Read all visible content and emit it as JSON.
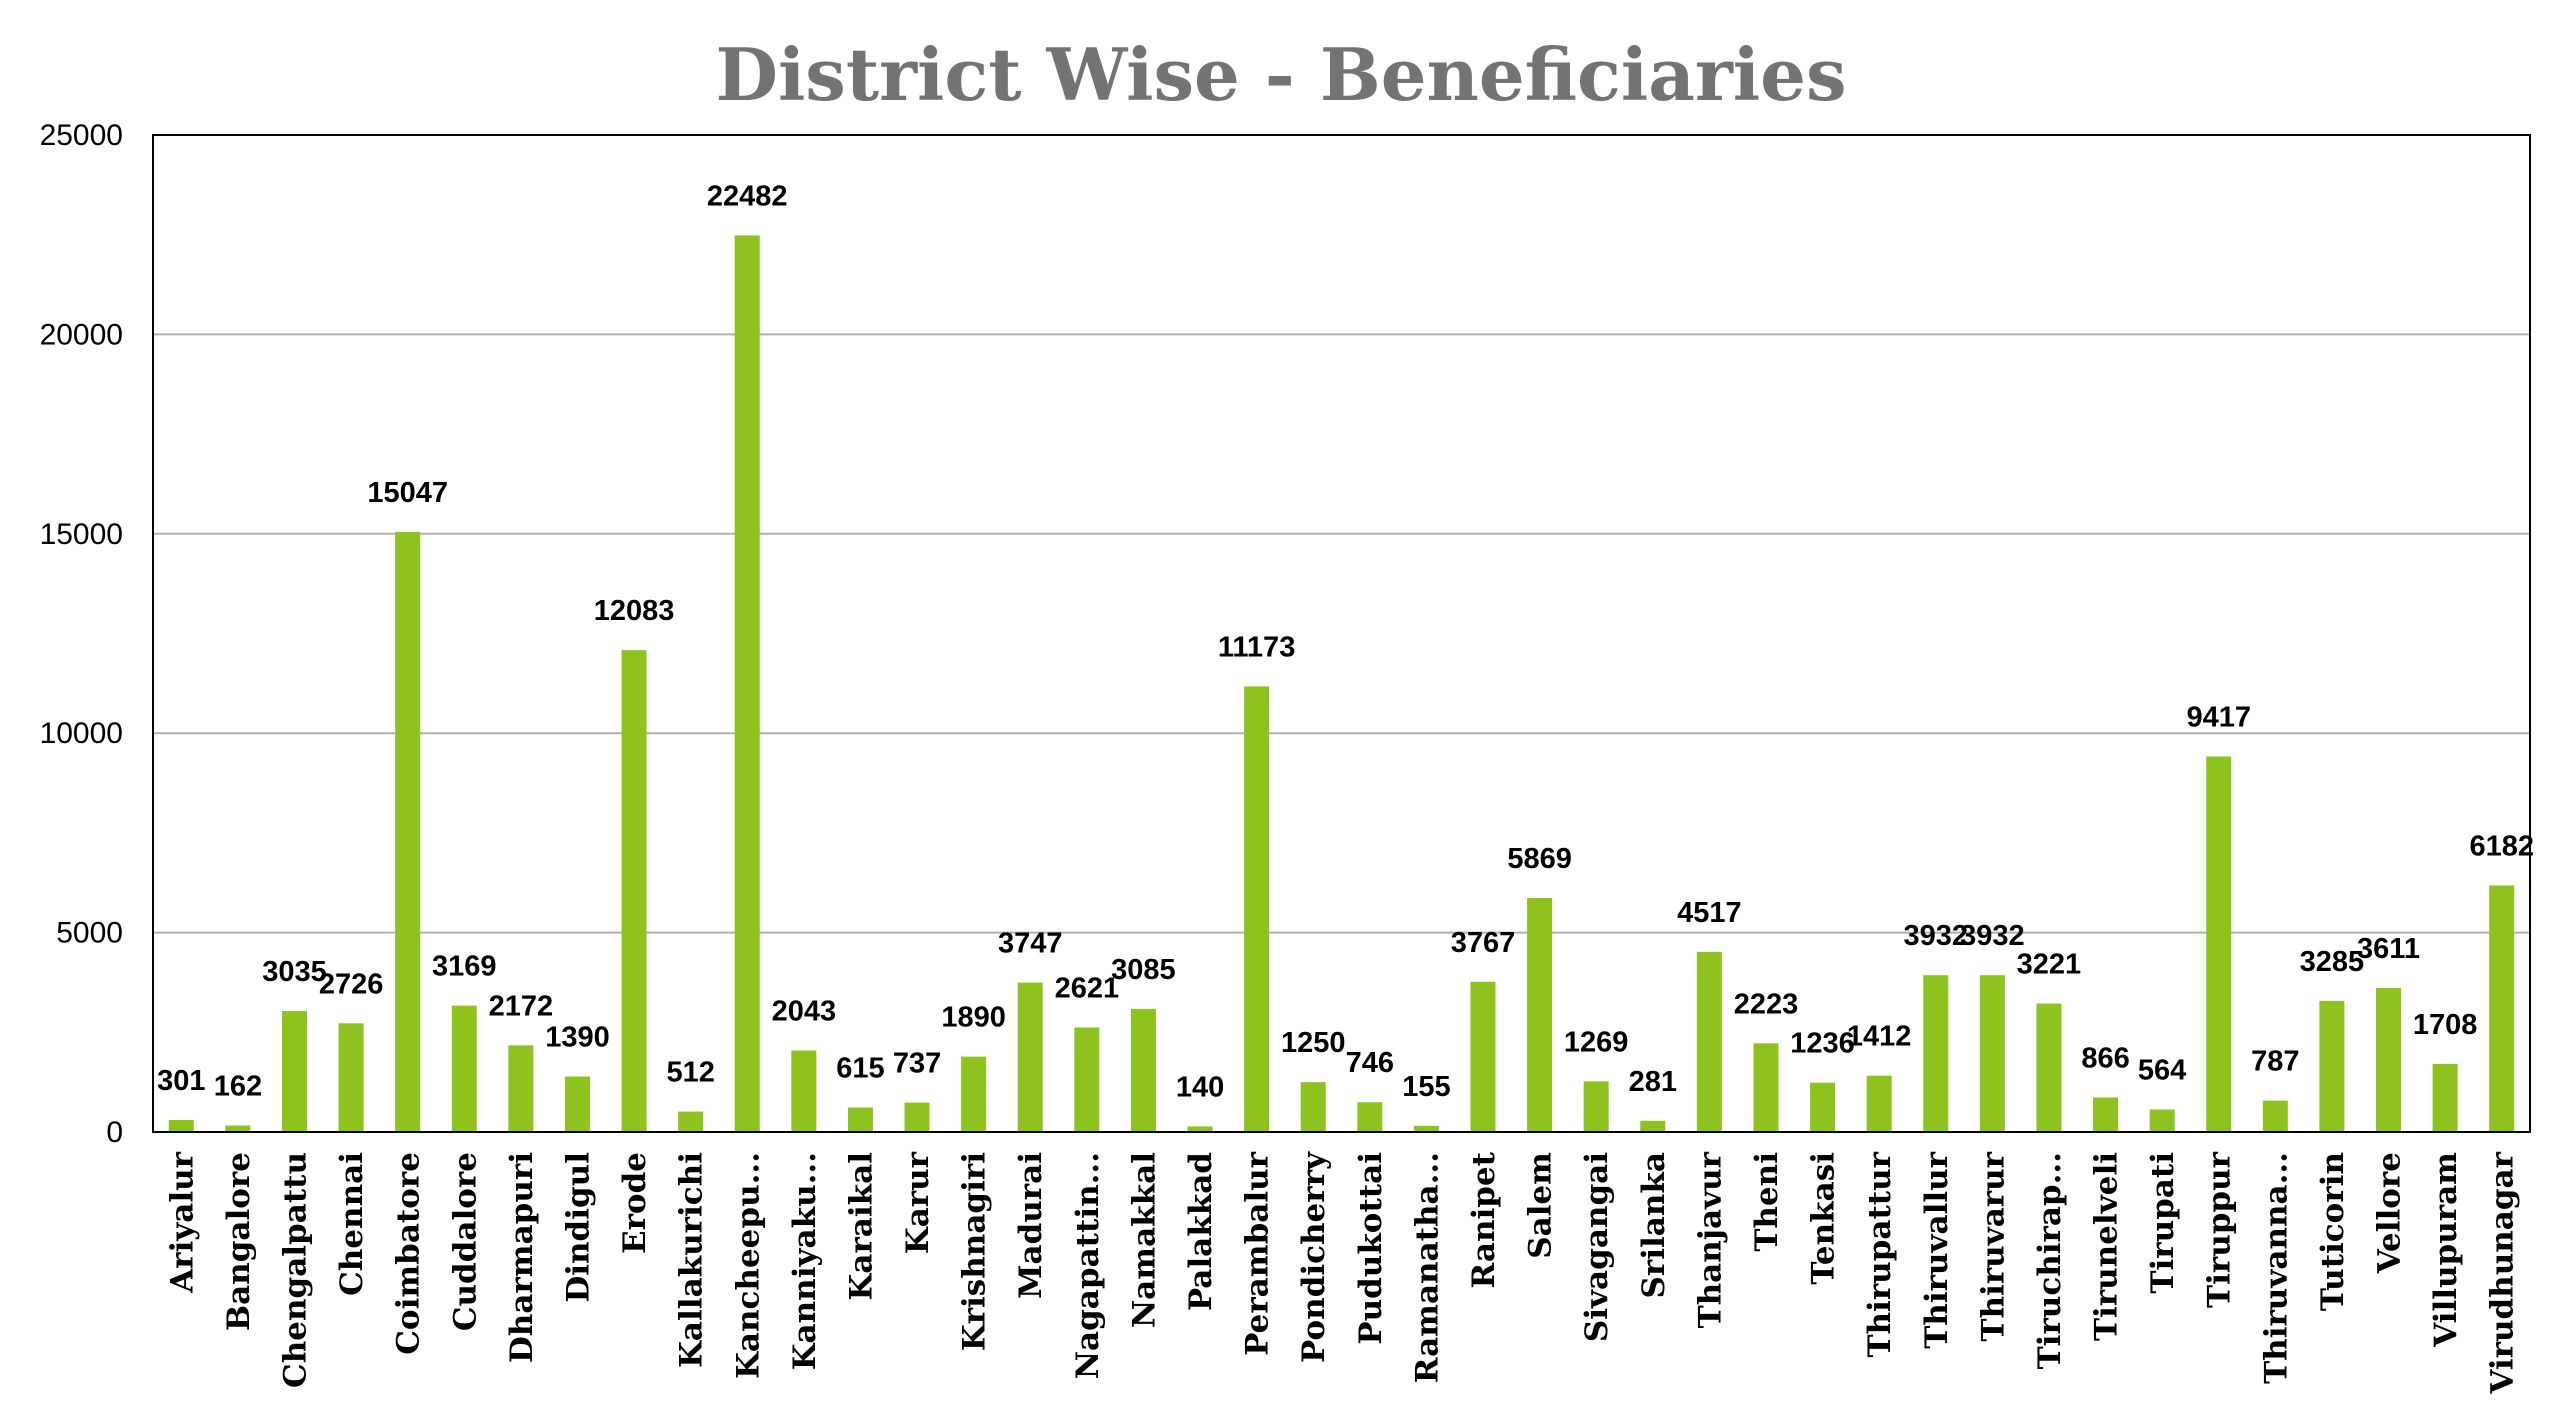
{
  "chart_data": {
    "type": "bar",
    "title": "District Wise - Beneficiaries",
    "xlabel": "",
    "ylabel": "",
    "ylim": [
      0,
      25000
    ],
    "yticks": [
      0,
      5000,
      10000,
      15000,
      20000,
      25000
    ],
    "grid": true,
    "bar_color": "#8dc21f",
    "categories": [
      "Ariyalur",
      "Bangalore",
      "Chengalpattu",
      "Chennai",
      "Coimbatore",
      "Cuddalore",
      "Dharmapuri",
      "Dindigul",
      "Erode",
      "Kallakurichi",
      "Kancheepu...",
      "Kanniyaku...",
      "Karaikal",
      "Karur",
      "Krishnagiri",
      "Madurai",
      "Nagapattin...",
      "Namakkal",
      "Palakkad",
      "Perambalur",
      "Pondicherry",
      "Pudukottai",
      "Ramanatha...",
      "Ranipet",
      "Salem",
      "Sivagangai",
      "Srilanka",
      "Thanjavur",
      "Theni",
      "Tenkasi",
      "Thirupattur",
      "Thiruvallur",
      "Thiruvarur",
      "Tiruchirap...",
      "Tirunelveli",
      "Tirupati",
      "Tiruppur",
      "Thiruvanna...",
      "Tuticorin",
      "Vellore",
      "Villupuram",
      "Virudhunagar"
    ],
    "values": [
      301,
      162,
      3035,
      2726,
      15047,
      3169,
      2172,
      1390,
      12083,
      512,
      22482,
      2043,
      615,
      737,
      1890,
      3747,
      2621,
      3085,
      140,
      11173,
      1250,
      746,
      155,
      3767,
      5869,
      1269,
      281,
      4517,
      2223,
      1236,
      1412,
      3932,
      3932,
      3221,
      866,
      564,
      9417,
      787,
      3285,
      3611,
      1708,
      6182
    ]
  }
}
